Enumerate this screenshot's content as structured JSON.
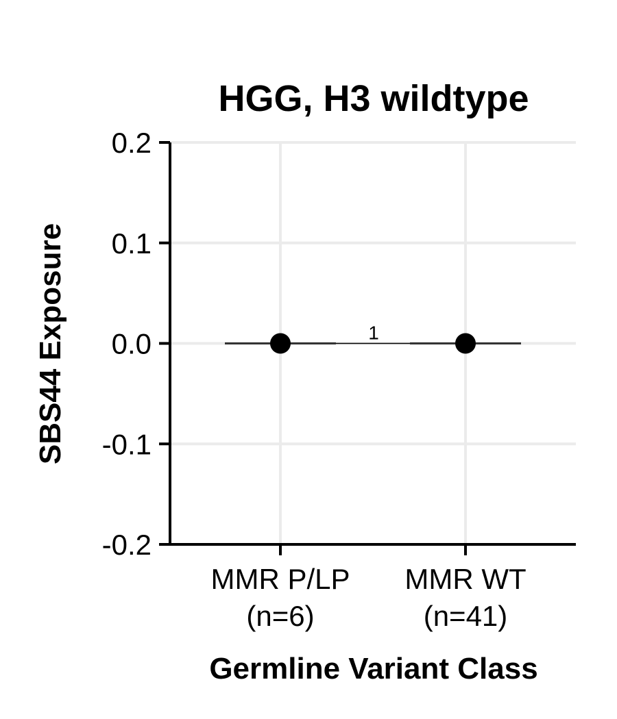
{
  "chart_data": {
    "type": "scatter",
    "title": "HGG, H3 wildtype",
    "xlabel": "Germline Variant Class",
    "ylabel": "SBS44 Exposure",
    "categories": [
      {
        "line1": "MMR P/LP",
        "line2": "(n=6)"
      },
      {
        "line1": "MMR WT",
        "line2": "(n=41)"
      }
    ],
    "values": [
      0.0,
      0.0
    ],
    "ylim": [
      -0.2,
      0.2
    ],
    "yticks": [
      "0.2",
      "0.1",
      "0.0",
      "-0.1",
      "-0.2"
    ],
    "ytick_values": [
      0.2,
      0.1,
      0.0,
      -0.1,
      -0.2
    ],
    "grid": true,
    "legend": "none",
    "annotation": {
      "text": "1",
      "between": [
        0,
        1
      ],
      "y": 0.0
    },
    "colors": {
      "point": "#000000",
      "median_line": "#333333",
      "grid": "#ebebeb",
      "axis": "#000000"
    }
  }
}
